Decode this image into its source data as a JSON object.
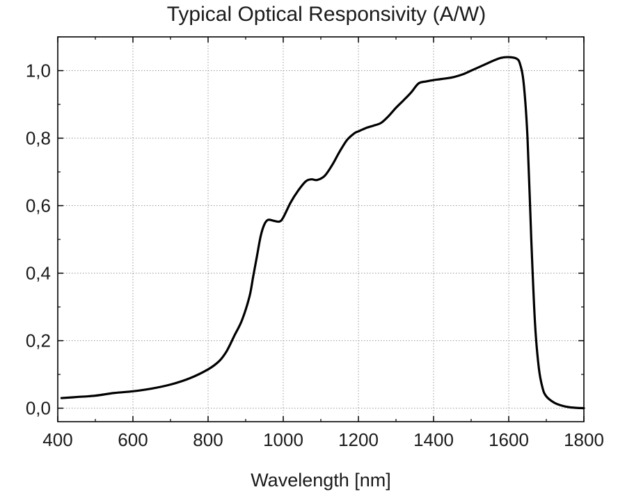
{
  "chart_data": {
    "type": "line",
    "title": "Typical Optical Responsivity (A/W)",
    "xlabel": "Wavelength [nm]",
    "ylabel": "",
    "xlim": [
      400,
      1800
    ],
    "ylim": [
      -0.04,
      1.1
    ],
    "grid": true,
    "x_ticks": [
      400,
      600,
      800,
      1000,
      1200,
      1400,
      1600,
      1800
    ],
    "x_tick_labels": [
      "400",
      "600",
      "800",
      "1000",
      "1200",
      "1400",
      "1600",
      "1800"
    ],
    "y_ticks": [
      0.0,
      0.2,
      0.4,
      0.6,
      0.8,
      1.0
    ],
    "y_tick_labels": [
      "0,0",
      "0,2",
      "0,4",
      "0,6",
      "0,8",
      "1,0"
    ],
    "series": [
      {
        "name": "Responsivity",
        "color": "#000000",
        "x": [
          410,
          450,
          500,
          550,
          600,
          650,
          700,
          750,
          800,
          830,
          850,
          870,
          890,
          910,
          920,
          930,
          940,
          950,
          960,
          975,
          990,
          1000,
          1020,
          1040,
          1060,
          1075,
          1090,
          1110,
          1130,
          1150,
          1170,
          1190,
          1200,
          1220,
          1240,
          1260,
          1280,
          1300,
          1320,
          1340,
          1360,
          1380,
          1400,
          1420,
          1450,
          1480,
          1500,
          1520,
          1540,
          1560,
          1580,
          1600,
          1620,
          1630,
          1640,
          1650,
          1660,
          1670,
          1680,
          1690,
          1700,
          1720,
          1740,
          1760,
          1780,
          1800
        ],
        "y": [
          0.03,
          0.033,
          0.037,
          0.045,
          0.05,
          0.058,
          0.07,
          0.088,
          0.115,
          0.14,
          0.17,
          0.215,
          0.26,
          0.33,
          0.39,
          0.45,
          0.51,
          0.545,
          0.558,
          0.555,
          0.553,
          0.565,
          0.61,
          0.645,
          0.672,
          0.678,
          0.676,
          0.688,
          0.72,
          0.76,
          0.795,
          0.815,
          0.82,
          0.83,
          0.837,
          0.845,
          0.865,
          0.89,
          0.912,
          0.935,
          0.962,
          0.968,
          0.972,
          0.975,
          0.98,
          0.99,
          1.0,
          1.01,
          1.02,
          1.03,
          1.038,
          1.04,
          1.036,
          1.02,
          0.96,
          0.8,
          0.5,
          0.25,
          0.12,
          0.06,
          0.035,
          0.017,
          0.008,
          0.003,
          0.001,
          0.0
        ]
      }
    ]
  }
}
